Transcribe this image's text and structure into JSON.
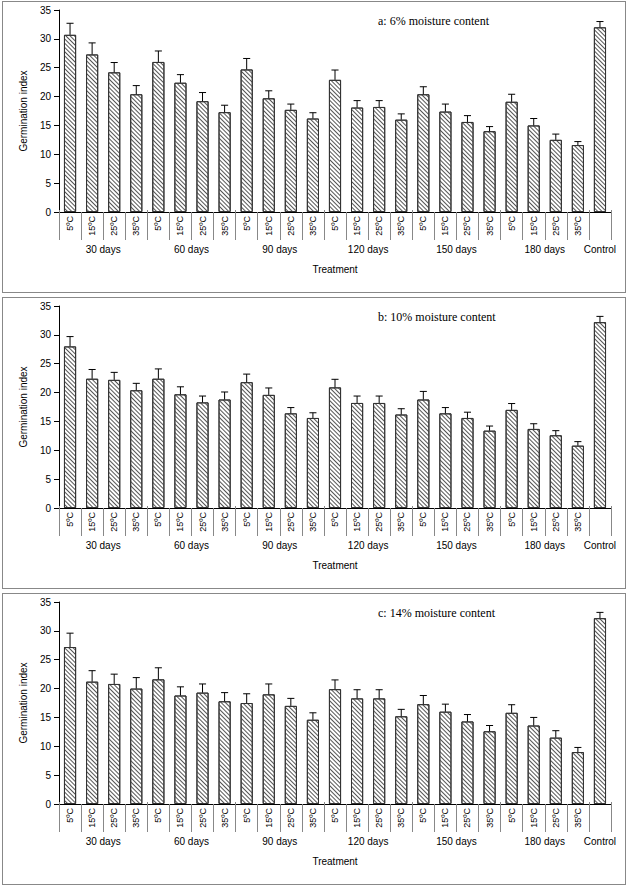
{
  "chart_data": [
    {
      "type": "bar",
      "title": "a: 6% moisture content",
      "x_label": "Treatment",
      "y_label": "Germination index",
      "categories": [
        "5ºC",
        "15ºC",
        "25ºC",
        "35ºC",
        "5ºC",
        "15ºC",
        "25ºC",
        "35ºC",
        "5ºC",
        "15ºC",
        "25ºC",
        "35ºC",
        "5ºC",
        "15ºC",
        "25ºC",
        "35ºC",
        "5ºC",
        "15ºC",
        "25ºC",
        "35ºC",
        "5ºC",
        "15ºC",
        "25ºC",
        "35ºC",
        null
      ],
      "groups": [
        {
          "label": "30 days",
          "count": 4
        },
        {
          "label": "60 days",
          "count": 4
        },
        {
          "label": "90 days",
          "count": 4
        },
        {
          "label": "120 days",
          "count": 4
        },
        {
          "label": "150 days",
          "count": 4
        },
        {
          "label": "180 days",
          "count": 4
        },
        {
          "label": "Control",
          "count": 1
        }
      ],
      "values": [
        30.7,
        27.3,
        24.2,
        20.4,
        26.0,
        22.4,
        19.2,
        17.3,
        24.7,
        19.7,
        17.7,
        16.2,
        22.9,
        18.1,
        18.2,
        16.0,
        20.4,
        17.4,
        15.6,
        14.0,
        19.1,
        15.0,
        12.5,
        11.6,
        32.0
      ],
      "errors": [
        2.0,
        2.0,
        1.7,
        1.5,
        1.9,
        1.4,
        1.5,
        1.2,
        1.9,
        1.3,
        1.0,
        1.0,
        1.7,
        1.2,
        1.1,
        1.0,
        1.3,
        1.3,
        1.1,
        0.8,
        1.3,
        1.2,
        1.0,
        0.6,
        1.0
      ],
      "color": "#555555",
      "ylim": [
        0,
        35
      ],
      "yticks": [
        0,
        5,
        10,
        15,
        20,
        25,
        30,
        35
      ],
      "grid": false
    },
    {
      "type": "bar",
      "title": "b: 10% moisture content",
      "x_label": "Treatment",
      "y_label": "Germination index",
      "categories": [
        "5ºC",
        "15ºC",
        "25ºC",
        "35ºC",
        "5ºC",
        "15ºC",
        "25ºC",
        "35ºC",
        "5ºC",
        "15ºC",
        "25ºC",
        "35ºC",
        "5ºC",
        "15ºC",
        "25ºC",
        "35ºC",
        "5ºC",
        "15ºC",
        "25ºC",
        "35ºC",
        "5ºC",
        "15ºC",
        "25ºC",
        "35ºC",
        null
      ],
      "groups": [
        {
          "label": "30 days",
          "count": 4
        },
        {
          "label": "60 days",
          "count": 4
        },
        {
          "label": "90 days",
          "count": 4
        },
        {
          "label": "120 days",
          "count": 4
        },
        {
          "label": "150 days",
          "count": 4
        },
        {
          "label": "180 days",
          "count": 4
        },
        {
          "label": "Control",
          "count": 1
        }
      ],
      "values": [
        28.0,
        22.4,
        22.2,
        20.4,
        22.4,
        19.7,
        18.3,
        18.8,
        21.8,
        19.6,
        16.4,
        15.6,
        20.9,
        18.2,
        18.2,
        16.2,
        18.8,
        16.4,
        15.6,
        13.4,
        17.0,
        13.7,
        12.6,
        10.8,
        32.2
      ],
      "errors": [
        1.7,
        1.6,
        1.3,
        1.2,
        1.7,
        1.3,
        1.1,
        1.3,
        1.4,
        1.2,
        1.0,
        0.9,
        1.4,
        1.2,
        1.2,
        1.0,
        1.4,
        1.0,
        1.0,
        0.8,
        1.1,
        0.9,
        0.8,
        0.7,
        1.0
      ],
      "color": "#555555",
      "ylim": [
        0,
        35
      ],
      "yticks": [
        0,
        5,
        10,
        15,
        20,
        25,
        30,
        35
      ],
      "grid": false
    },
    {
      "type": "bar",
      "title": "c: 14% moisture content",
      "x_label": "Treatment",
      "y_label": "Germination index",
      "categories": [
        "5ºC",
        "15ºC",
        "25ºC",
        "35ºC",
        "5ºC",
        "15ºC",
        "25ºC",
        "35ºC",
        "5ºC",
        "15ºC",
        "25ºC",
        "35ºC",
        "5ºC",
        "15ºC",
        "25ºC",
        "35ºC",
        "5ºC",
        "15ºC",
        "25ºC",
        "35ºC",
        "5ºC",
        "15ºC",
        "25ºC",
        "35ºC",
        null
      ],
      "groups": [
        {
          "label": "30 days",
          "count": 4
        },
        {
          "label": "60 days",
          "count": 4
        },
        {
          "label": "90 days",
          "count": 4
        },
        {
          "label": "120 days",
          "count": 4
        },
        {
          "label": "150 days",
          "count": 4
        },
        {
          "label": "180 days",
          "count": 4
        },
        {
          "label": "Control",
          "count": 1
        }
      ],
      "values": [
        27.2,
        21.2,
        20.8,
        20.0,
        21.6,
        18.8,
        19.3,
        17.8,
        17.5,
        19.0,
        17.0,
        14.6,
        19.9,
        18.3,
        18.3,
        15.2,
        17.3,
        16.0,
        14.3,
        12.6,
        15.8,
        13.6,
        11.5,
        9.0,
        32.2
      ],
      "errors": [
        2.4,
        1.9,
        1.7,
        1.9,
        2.0,
        1.5,
        1.5,
        1.5,
        1.6,
        1.8,
        1.3,
        1.2,
        1.6,
        1.5,
        1.5,
        1.2,
        1.5,
        1.3,
        1.2,
        1.0,
        1.4,
        1.4,
        1.2,
        0.8,
        1.0
      ],
      "color": "#555555",
      "ylim": [
        0,
        35
      ],
      "yticks": [
        0,
        5,
        10,
        15,
        20,
        25,
        30,
        35
      ],
      "grid": false
    }
  ]
}
